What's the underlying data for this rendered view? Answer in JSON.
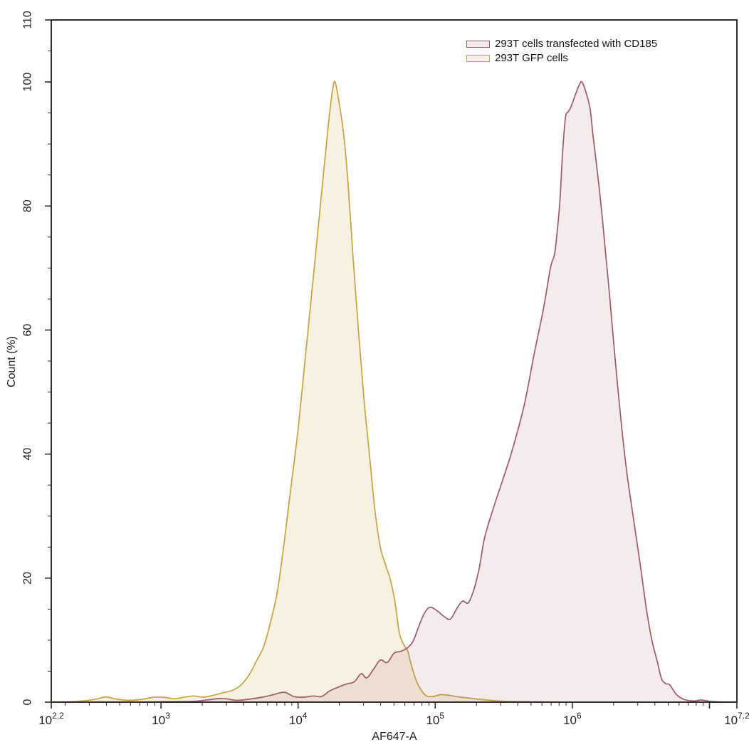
{
  "figure": {
    "background": "#ffffff",
    "axis_color": "#2e2e2e",
    "text_color": "#1c1c1c"
  },
  "chart_data": {
    "type": "area",
    "subtype": "flow-cytometry-histogram-overlay",
    "title": "",
    "xlabel": "AF647-A",
    "ylabel": "Count (%)",
    "x_scale": "log10",
    "xlim_log": [
      2.2,
      7.2
    ],
    "ylim": [
      0,
      110
    ],
    "grid": false,
    "legend_position": "top-right-inside",
    "x_ticks": [
      {
        "base": "10",
        "exp": "2.2",
        "log": 2.2
      },
      {
        "base": "10",
        "exp": "3",
        "log": 3
      },
      {
        "base": "10",
        "exp": "4",
        "log": 4
      },
      {
        "base": "10",
        "exp": "5",
        "log": 5
      },
      {
        "base": "10",
        "exp": "6",
        "log": 6
      },
      {
        "base": "10",
        "exp": "7.2",
        "log": 7.2
      }
    ],
    "x_unlabeled_major_logs": [
      7
    ],
    "y_major_ticks": [
      0,
      20,
      40,
      60,
      80,
      100,
      110
    ],
    "y_minor_step": 5,
    "series": [
      {
        "name": "293T cells transfected with CD185",
        "stroke": "#9e5b65",
        "fill": "rgba(158,91,101,0.12)",
        "peak_log": 6.07,
        "peak_pct": 100,
        "points": [
          [
            2.2,
            0.0
          ],
          [
            2.6,
            0.05
          ],
          [
            2.9,
            0.05
          ],
          [
            3.1,
            0.1
          ],
          [
            3.25,
            0.15
          ],
          [
            3.35,
            0.4
          ],
          [
            3.45,
            0.6
          ],
          [
            3.55,
            0.3
          ],
          [
            3.65,
            0.5
          ],
          [
            3.74,
            0.8
          ],
          [
            3.82,
            1.2
          ],
          [
            3.9,
            1.6
          ],
          [
            3.97,
            0.9
          ],
          [
            4.04,
            0.8
          ],
          [
            4.11,
            1.0
          ],
          [
            4.17,
            0.9
          ],
          [
            4.23,
            1.8
          ],
          [
            4.29,
            2.4
          ],
          [
            4.35,
            2.9
          ],
          [
            4.41,
            3.3
          ],
          [
            4.46,
            4.6
          ],
          [
            4.5,
            3.9
          ],
          [
            4.55,
            5.3
          ],
          [
            4.6,
            6.8
          ],
          [
            4.65,
            6.4
          ],
          [
            4.7,
            7.9
          ],
          [
            4.75,
            8.2
          ],
          [
            4.8,
            8.8
          ],
          [
            4.84,
            9.9
          ],
          [
            4.88,
            12.2
          ],
          [
            4.92,
            14.3
          ],
          [
            4.96,
            15.3
          ],
          [
            5.01,
            14.8
          ],
          [
            5.06,
            13.9
          ],
          [
            5.11,
            13.4
          ],
          [
            5.16,
            15.2
          ],
          [
            5.2,
            16.3
          ],
          [
            5.24,
            16.0
          ],
          [
            5.28,
            18.0
          ],
          [
            5.32,
            21.5
          ],
          [
            5.36,
            26.5
          ],
          [
            5.42,
            31.0
          ],
          [
            5.49,
            35.7
          ],
          [
            5.56,
            40.5
          ],
          [
            5.65,
            48.0
          ],
          [
            5.72,
            56.0
          ],
          [
            5.79,
            63.5
          ],
          [
            5.84,
            70.0
          ],
          [
            5.87,
            72.2
          ],
          [
            5.89,
            76.0
          ],
          [
            5.91,
            81.0
          ],
          [
            5.93,
            89.0
          ],
          [
            5.95,
            94.3
          ],
          [
            5.97,
            95.2
          ],
          [
            5.99,
            96.0
          ],
          [
            6.02,
            97.8
          ],
          [
            6.05,
            99.5
          ],
          [
            6.07,
            100.0
          ],
          [
            6.1,
            98.3
          ],
          [
            6.13,
            95.6
          ],
          [
            6.15,
            91.5
          ],
          [
            6.18,
            86.0
          ],
          [
            6.21,
            80.0
          ],
          [
            6.24,
            73.0
          ],
          [
            6.27,
            66.0
          ],
          [
            6.31,
            55.8
          ],
          [
            6.36,
            44.3
          ],
          [
            6.4,
            36.6
          ],
          [
            6.45,
            29.0
          ],
          [
            6.5,
            21.4
          ],
          [
            6.54,
            15.0
          ],
          [
            6.58,
            10.0
          ],
          [
            6.62,
            6.5
          ],
          [
            6.65,
            3.8
          ],
          [
            6.68,
            3.0
          ],
          [
            6.71,
            2.8
          ],
          [
            6.76,
            1.2
          ],
          [
            6.82,
            0.4
          ],
          [
            6.89,
            0.2
          ],
          [
            6.94,
            0.35
          ],
          [
            7.0,
            0.15
          ],
          [
            7.1,
            0.05
          ],
          [
            7.2,
            0.05
          ]
        ]
      },
      {
        "name": "293T GFP cells",
        "stroke": "#c7a23f",
        "fill": "rgba(206,168,76,0.16)",
        "peak_log": 4.27,
        "peak_pct": 100,
        "points": [
          [
            2.2,
            0.05
          ],
          [
            2.35,
            0.1
          ],
          [
            2.45,
            0.25
          ],
          [
            2.53,
            0.5
          ],
          [
            2.6,
            0.85
          ],
          [
            2.67,
            0.5
          ],
          [
            2.76,
            0.3
          ],
          [
            2.86,
            0.45
          ],
          [
            2.95,
            0.8
          ],
          [
            3.03,
            0.75
          ],
          [
            3.1,
            0.55
          ],
          [
            3.17,
            0.8
          ],
          [
            3.24,
            1.0
          ],
          [
            3.31,
            0.8
          ],
          [
            3.38,
            1.1
          ],
          [
            3.45,
            1.5
          ],
          [
            3.52,
            1.9
          ],
          [
            3.58,
            2.7
          ],
          [
            3.64,
            4.3
          ],
          [
            3.7,
            6.8
          ],
          [
            3.75,
            9.0
          ],
          [
            3.8,
            13.0
          ],
          [
            3.85,
            18.0
          ],
          [
            3.9,
            26.0
          ],
          [
            3.95,
            35.0
          ],
          [
            4.0,
            44.0
          ],
          [
            4.05,
            55.0
          ],
          [
            4.1,
            66.0
          ],
          [
            4.14,
            75.0
          ],
          [
            4.18,
            84.0
          ],
          [
            4.22,
            93.0
          ],
          [
            4.25,
            98.5
          ],
          [
            4.27,
            100.0
          ],
          [
            4.3,
            96.5
          ],
          [
            4.33,
            92.0
          ],
          [
            4.36,
            85.0
          ],
          [
            4.4,
            72.0
          ],
          [
            4.44,
            60.0
          ],
          [
            4.48,
            49.0
          ],
          [
            4.52,
            40.0
          ],
          [
            4.56,
            31.0
          ],
          [
            4.6,
            25.0
          ],
          [
            4.64,
            22.0
          ],
          [
            4.67,
            20.0
          ],
          [
            4.7,
            17.0
          ],
          [
            4.72,
            14.0
          ],
          [
            4.74,
            11.0
          ],
          [
            4.77,
            9.3
          ],
          [
            4.8,
            8.2
          ],
          [
            4.82,
            6.5
          ],
          [
            4.85,
            4.2
          ],
          [
            4.88,
            2.6
          ],
          [
            4.93,
            1.1
          ],
          [
            4.98,
            0.9
          ],
          [
            5.04,
            1.2
          ],
          [
            5.1,
            1.1
          ],
          [
            5.17,
            0.85
          ],
          [
            5.25,
            0.65
          ],
          [
            5.35,
            0.4
          ],
          [
            5.46,
            0.2
          ],
          [
            5.6,
            0.1
          ],
          [
            5.8,
            0.05
          ],
          [
            6.1,
            0.0
          ],
          [
            7.2,
            0.0
          ]
        ]
      }
    ]
  }
}
